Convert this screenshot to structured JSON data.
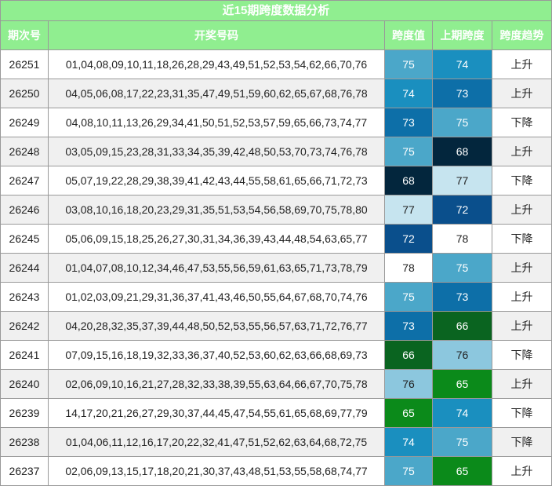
{
  "header": {
    "title": "近15期跨度数据分析"
  },
  "table": {
    "columns": [
      "期次号",
      "开奖号码",
      "跨度值",
      "上期跨度",
      "跨度趋势"
    ],
    "rows": [
      {
        "issue": "26251",
        "numbers": "01,04,08,09,10,11,18,26,28,29,43,49,51,52,53,54,62,66,70,76",
        "span": 75,
        "prev_span": 74,
        "trend": "上升",
        "span_color": "#4ba7c9",
        "prev_color": "#1a8fbf"
      },
      {
        "issue": "26250",
        "numbers": "04,05,06,08,17,22,23,31,35,47,49,51,59,60,62,65,67,68,76,78",
        "span": 74,
        "prev_span": 73,
        "trend": "上升",
        "span_color": "#1a8fbf",
        "prev_color": "#0d6fa8"
      },
      {
        "issue": "26249",
        "numbers": "04,08,10,11,13,26,29,34,41,50,51,52,53,57,59,65,66,73,74,77",
        "span": 73,
        "prev_span": 75,
        "trend": "下降",
        "span_color": "#0d6fa8",
        "prev_color": "#4ba7c9"
      },
      {
        "issue": "26248",
        "numbers": "03,05,09,15,23,28,31,33,34,35,39,42,48,50,53,70,73,74,76,78",
        "span": 75,
        "prev_span": 68,
        "trend": "上升",
        "span_color": "#4ba7c9",
        "prev_color": "#03263d"
      },
      {
        "issue": "26247",
        "numbers": "05,07,19,22,28,29,38,39,41,42,43,44,55,58,61,65,66,71,72,73",
        "span": 68,
        "prev_span": 77,
        "trend": "下降",
        "span_color": "#03263d",
        "prev_color": "#c6e4ef"
      },
      {
        "issue": "26246",
        "numbers": "03,08,10,16,18,20,23,29,31,35,51,53,54,56,58,69,70,75,78,80",
        "span": 77,
        "prev_span": 72,
        "trend": "上升",
        "span_color": "#c6e4ef",
        "prev_color": "#0a4f8c"
      },
      {
        "issue": "26245",
        "numbers": "05,06,09,15,18,25,26,27,30,31,34,36,39,43,44,48,54,63,65,77",
        "span": 72,
        "prev_span": 78,
        "trend": "下降",
        "span_color": "#0a4f8c",
        "prev_color": "#ffffff"
      },
      {
        "issue": "26244",
        "numbers": "01,04,07,08,10,12,34,46,47,53,55,56,59,61,63,65,71,73,78,79",
        "span": 78,
        "prev_span": 75,
        "trend": "上升",
        "span_color": "#ffffff",
        "prev_color": "#4ba7c9"
      },
      {
        "issue": "26243",
        "numbers": "01,02,03,09,21,29,31,36,37,41,43,46,50,55,64,67,68,70,74,76",
        "span": 75,
        "prev_span": 73,
        "trend": "上升",
        "span_color": "#4ba7c9",
        "prev_color": "#0d6fa8"
      },
      {
        "issue": "26242",
        "numbers": "04,20,28,32,35,37,39,44,48,50,52,53,55,56,57,63,71,72,76,77",
        "span": 73,
        "prev_span": 66,
        "trend": "上升",
        "span_color": "#0d6fa8",
        "prev_color": "#0a6420"
      },
      {
        "issue": "26241",
        "numbers": "07,09,15,16,18,19,32,33,36,37,40,52,53,60,62,63,66,68,69,73",
        "span": 66,
        "prev_span": 76,
        "trend": "下降",
        "span_color": "#0a6420",
        "prev_color": "#8cc7de"
      },
      {
        "issue": "26240",
        "numbers": "02,06,09,10,16,21,27,28,32,33,38,39,55,63,64,66,67,70,75,78",
        "span": 76,
        "prev_span": 65,
        "trend": "上升",
        "span_color": "#8cc7de",
        "prev_color": "#0b8a1a"
      },
      {
        "issue": "26239",
        "numbers": "14,17,20,21,26,27,29,30,37,44,45,47,54,55,61,65,68,69,77,79",
        "span": 65,
        "prev_span": 74,
        "trend": "下降",
        "span_color": "#0b8a1a",
        "prev_color": "#1a8fbf"
      },
      {
        "issue": "26238",
        "numbers": "01,04,06,11,12,16,17,20,22,32,41,47,51,52,62,63,64,68,72,75",
        "span": 74,
        "prev_span": 75,
        "trend": "下降",
        "span_color": "#1a8fbf",
        "prev_color": "#4ba7c9"
      },
      {
        "issue": "26237",
        "numbers": "02,06,09,13,15,17,18,20,21,30,37,43,48,51,53,55,58,68,74,77",
        "span": 75,
        "prev_span": 65,
        "trend": "上升",
        "span_color": "#4ba7c9",
        "prev_color": "#0b8a1a"
      }
    ]
  }
}
